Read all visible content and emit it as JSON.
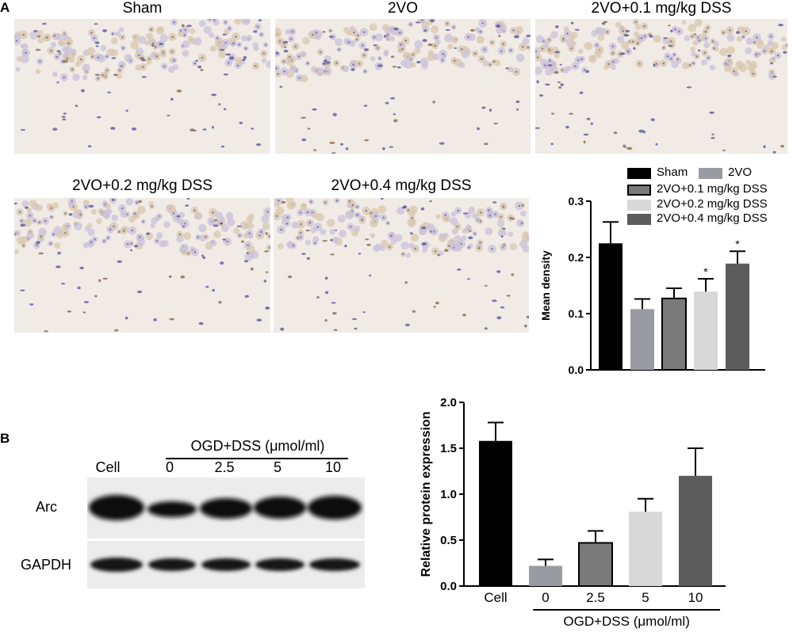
{
  "panel_a": {
    "letter": "A",
    "images": [
      {
        "title": "Sham"
      },
      {
        "title": "2VO"
      },
      {
        "title": "2VO+0.1 mg/kg DSS"
      },
      {
        "title": "2VO+0.2 mg/kg DSS"
      },
      {
        "title": "2VO+0.4 mg/kg DSS"
      }
    ]
  },
  "panel_b": {
    "letter": "B",
    "blot": {
      "group_label": "OGD+DSS (μmol/ml)",
      "lanes": [
        "Cell",
        "0",
        "2.5",
        "5",
        "10"
      ],
      "rows": [
        "Arc",
        "GAPDH"
      ]
    }
  },
  "colors": {
    "black": "#000000",
    "mid_gray": "#9a9aa2",
    "dark_gray": "#7a7a7a",
    "light_gray": "#d8d8d8",
    "charcoal": "#5c5c5c"
  },
  "chart_data": [
    {
      "type": "bar",
      "categories": [
        "Sham",
        "2VO",
        "2VO+0.1 mg/kg DSS",
        "2VO+0.2 mg/kg DSS",
        "2VO+0.4 mg/kg DSS"
      ],
      "values": [
        0.225,
        0.108,
        0.127,
        0.139,
        0.189
      ],
      "errors": [
        0.038,
        0.018,
        0.018,
        0.023,
        0.022
      ],
      "significance": [
        "",
        "",
        "",
        "*",
        "*"
      ],
      "bar_colors": [
        "#000000",
        "#9a9aa2",
        "#7a7a7a",
        "#d8d8d8",
        "#5c5c5c"
      ],
      "ylabel": "Mean density",
      "xlabel": "",
      "ylim": [
        0,
        0.3
      ],
      "yticks": [
        "0.0",
        "0.1",
        "0.2",
        "0.3"
      ],
      "legend": [
        "Sham",
        "2VO",
        "2VO+0.1 mg/kg DSS",
        "2VO+0.2 mg/kg DSS",
        "2VO+0.4 mg/kg DSS"
      ],
      "legend_position": "top",
      "grid": false
    },
    {
      "type": "bar",
      "categories": [
        "Cell",
        "0",
        "2.5",
        "5",
        "10"
      ],
      "values": [
        1.58,
        0.22,
        0.47,
        0.81,
        1.2
      ],
      "errors": [
        0.2,
        0.07,
        0.13,
        0.14,
        0.3
      ],
      "bar_colors": [
        "#000000",
        "#9a9aa2",
        "#7a7a7a",
        "#d8d8d8",
        "#5c5c5c"
      ],
      "ylabel": "Relative protein expression",
      "xlabel": "OGD+DSS (μmol/ml)",
      "ylim": [
        0,
        2.0
      ],
      "yticks": [
        "0.0",
        "0.5",
        "1.0",
        "1.5",
        "2.0"
      ],
      "grid": false
    }
  ]
}
